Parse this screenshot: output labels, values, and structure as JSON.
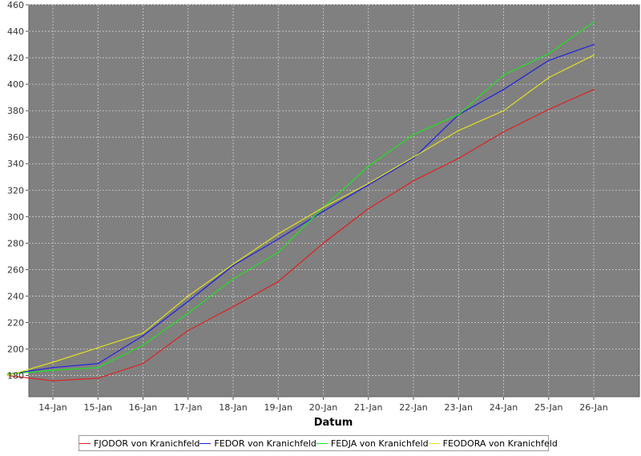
{
  "chart_data": {
    "type": "line",
    "title": "",
    "xlabel": "Datum",
    "ylabel": "",
    "x": [
      "14-Jan",
      "15-Jan",
      "16-Jan",
      "17-Jan",
      "18-Jan",
      "19-Jan",
      "20-Jan",
      "21-Jan",
      "22-Jan",
      "23-Jan",
      "24-Jan",
      "25-Jan",
      "26-Jan"
    ],
    "ylim": [
      164,
      460
    ],
    "yticks": [
      180,
      200,
      220,
      240,
      260,
      280,
      300,
      320,
      340,
      360,
      380,
      400,
      420,
      440,
      460
    ],
    "grid": true,
    "legend_position": "bottom",
    "plot_background": "#808080",
    "series": [
      {
        "name": "FJODOR von Kranichfeld",
        "color": "#e02020",
        "x": [
          "2013-01-13",
          "2013-01-14",
          "2013-01-15",
          "2013-01-16",
          "2013-01-17",
          "2013-01-18",
          "2013-01-19",
          "2013-01-20",
          "2013-01-21",
          "2013-01-22",
          "2013-01-23",
          "2013-01-24",
          "2013-01-25",
          "2013-01-26"
        ],
        "values": [
          180,
          176,
          178,
          189,
          214,
          232,
          251,
          280,
          306,
          327,
          344,
          364,
          381,
          396
        ]
      },
      {
        "name": "FEDOR von Kranichfeld",
        "color": "#2020e0",
        "x": [
          "2013-01-13",
          "2013-01-14",
          "2013-01-15",
          "2013-01-16",
          "2013-01-17",
          "2013-01-18",
          "2013-01-19",
          "2013-01-20",
          "2013-01-21",
          "2013-01-22",
          "2013-01-23",
          "2013-01-24",
          "2013-01-25",
          "2013-01-26"
        ],
        "values": [
          181,
          186,
          189,
          210,
          236,
          263,
          283,
          304,
          324,
          344,
          377,
          396,
          418,
          430
        ]
      },
      {
        "name": "FEDJA von Kranichfeld",
        "color": "#20e020",
        "x": [
          "2013-01-13",
          "2013-01-14",
          "2013-01-15",
          "2013-01-16",
          "2013-01-17",
          "2013-01-18",
          "2013-01-19",
          "2013-01-20",
          "2013-01-21",
          "2013-01-22",
          "2013-01-23",
          "2013-01-24",
          "2013-01-25",
          "2013-01-26"
        ],
        "values": [
          181,
          184,
          186,
          203,
          227,
          253,
          273,
          307,
          338,
          362,
          377,
          407,
          423,
          447
        ]
      },
      {
        "name": "FEODORA von Kranichfeld",
        "color": "#e0e020",
        "x": [
          "2013-01-13",
          "2013-01-14",
          "2013-01-15",
          "2013-01-16",
          "2013-01-17",
          "2013-01-18",
          "2013-01-19",
          "2013-01-20",
          "2013-01-21",
          "2013-01-22",
          "2013-01-23",
          "2013-01-24",
          "2013-01-25",
          "2013-01-26"
        ],
        "values": [
          180,
          190,
          201,
          212,
          240,
          264,
          287,
          307,
          325,
          345,
          365,
          380,
          405,
          422
        ]
      }
    ]
  }
}
